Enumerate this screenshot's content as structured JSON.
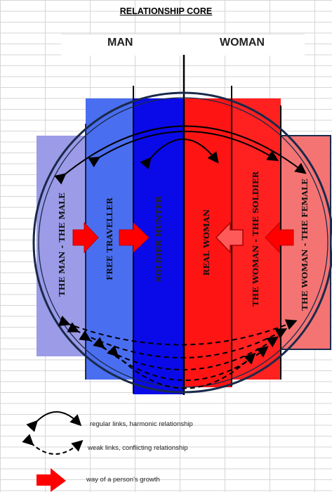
{
  "title": "RELATIONSHIP CORE",
  "headers": {
    "man": "MAN",
    "woman": "WOMAN"
  },
  "columns": [
    {
      "label": "THE MAN - THE MALE",
      "color": "#9b9be8"
    },
    {
      "label": "FREE  TRAVELLER",
      "color": "#4a6ef0"
    },
    {
      "label": "SOLDIER  HUNTER",
      "color": "#0a0ae8"
    },
    {
      "label": "REAL  WOMAN",
      "color": "#ff1414"
    },
    {
      "label": "THE WOMAN - THE SOLDIER",
      "color": "#ff2020"
    },
    {
      "label": "THE WOMAN - THE FEMALE",
      "color": "#f47474"
    }
  ],
  "colors": {
    "growth_arrow": "#ff0000",
    "circle_stroke": "#1a2a4a"
  },
  "legend": [
    {
      "icon": "solid-arc-icon",
      "text": "regular  links,  harmonic relationship"
    },
    {
      "icon": "dashed-arc-icon",
      "text": "weak links,  conflicting relationship"
    },
    {
      "icon": "red-arrow-icon",
      "text": "way of a person's growth"
    }
  ]
}
